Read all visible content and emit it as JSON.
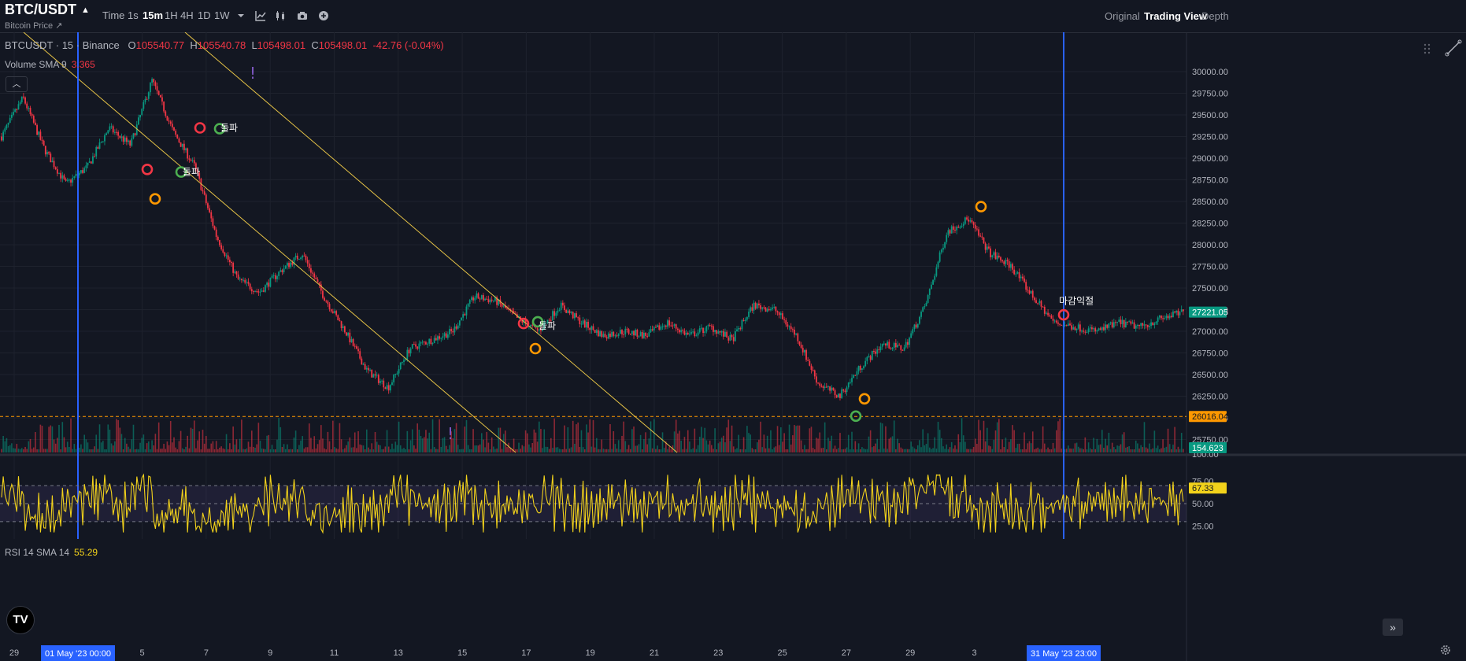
{
  "header": {
    "symbol": "BTC/USDT",
    "subtitle": "Bitcoin Price ↗",
    "timeframes": [
      "Time",
      "1s",
      "15m",
      "1H",
      "4H",
      "1D",
      "1W"
    ],
    "active_timeframe": "15m",
    "views": [
      "Original",
      "Trading View",
      "Depth"
    ],
    "active_view": "Trading View",
    "tool_icons": [
      "chevron-down-icon",
      "indicator-icon",
      "candles-icon",
      "camera-icon",
      "plus-circle-icon"
    ]
  },
  "legend": {
    "symbol_line": "BTCUSDT · 15 · Binance",
    "open_label": "O",
    "open": "105540.77",
    "high_label": "H",
    "high": "105540.78",
    "low_label": "L",
    "low": "105498.01",
    "close_label": "C",
    "close": "105498.01",
    "change": "-42.76 (-0.04%)"
  },
  "volume_legend": {
    "name": "Volume SMA 9",
    "value": "3.365"
  },
  "rsi_legend": {
    "name": "RSI 14 SMA 14",
    "value": "55.29"
  },
  "price_axis": [
    "30000.00",
    "29750.00",
    "29500.00",
    "29250.00",
    "29000.00",
    "28750.00",
    "28500.00",
    "28250.00",
    "28000.00",
    "27750.00",
    "27500.00",
    "27250.00",
    "27000.00",
    "26750.00",
    "26500.00",
    "26250.00",
    "26000.00",
    "25750.00"
  ],
  "price_badges": {
    "last": "27221.05",
    "level": "26016.04",
    "volume": "154.623",
    "vol_axis": "100.00"
  },
  "rsi_axis": [
    "75.00",
    "50.00",
    "25.00"
  ],
  "rsi_badge": "67.33",
  "time_axis": [
    "29",
    "3",
    "5",
    "7",
    "9",
    "11",
    "13",
    "15",
    "17",
    "19",
    "21",
    "23",
    "25",
    "27",
    "29",
    "3"
  ],
  "time_badges": [
    "01 May '23   00:00",
    "31 May '23   23:00"
  ],
  "annotations": {
    "break1": "돌파",
    "break2": "돌파",
    "break3": "돌파",
    "close_break": "마감익절",
    "excl": "!"
  },
  "colors": {
    "bg": "#131722",
    "up": "#089981",
    "down": "#f23645",
    "rsi": "#f2d21b",
    "trend": "#e8c547",
    "marker_red": "#f23645",
    "marker_green": "#4caf50",
    "marker_orange": "#ff9800",
    "vline": "#2962ff",
    "level": "#ff9800"
  },
  "chart_data": {
    "type": "candlestick",
    "series": [
      {
        "name": "BTCUSDT",
        "values": [
          29250,
          29700,
          29100,
          28700,
          28900,
          29350,
          29150,
          29900,
          29300,
          28900,
          28100,
          27600,
          27450,
          27700,
          27900,
          27400,
          27000,
          26550,
          26350,
          26800,
          26900,
          27000,
          27400,
          27350,
          27150,
          27000,
          27300,
          27100,
          26950,
          27000,
          26950,
          27100,
          26950,
          27050,
          26900,
          27300,
          27250,
          26950,
          26400,
          26250,
          26600,
          26850,
          26800,
          27300,
          28150,
          28300,
          27900,
          27750,
          27400,
          27100,
          27050,
          27000,
          27100,
          27050,
          27150,
          27221.05
        ]
      }
    ],
    "ylim": [
      25600,
      30100
    ],
    "rsi_ylim": [
      15,
      85
    ],
    "rsi_bands": [
      30,
      50,
      70
    ],
    "level_line": 26016.04
  }
}
